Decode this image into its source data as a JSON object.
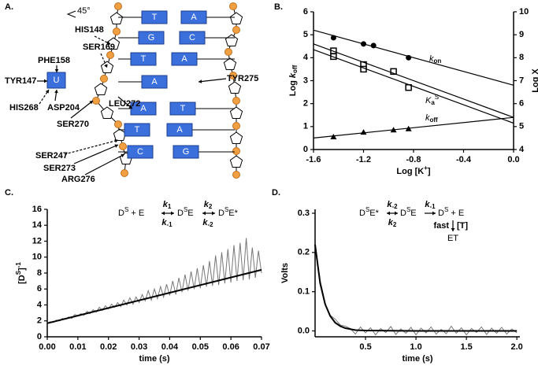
{
  "panel_labels": [
    "A.",
    "B.",
    "C.",
    "D."
  ],
  "diagram": {
    "angle": "45°",
    "nucleotide": "U",
    "residues": [
      "PHE158",
      "TYR147",
      "HIS268",
      "ASP204",
      "HIS148",
      "SER169",
      "LEU272",
      "TYR275",
      "SER270",
      "SER247",
      "SER273",
      "ARG276"
    ],
    "bases": [
      [
        "T",
        "A"
      ],
      [
        "G",
        "C"
      ],
      [
        "T",
        "A"
      ],
      [
        "A"
      ],
      [
        "A",
        "T"
      ],
      [
        "T",
        "A"
      ],
      [
        "C",
        "G"
      ]
    ]
  },
  "chart_data": [
    {
      "type": "scatter",
      "xlabel": [
        "Log [K",
        "+",
        "]"
      ],
      "ylabel": [
        "Log ",
        "k",
        "off"
      ],
      "y2label": "Log X",
      "xlim": [
        -1.6,
        0.0
      ],
      "xticks": [
        -1.6,
        -1.2,
        -0.8,
        -0.4,
        {
          "value": 0,
          "label": "0.0"
        }
      ],
      "ylim": [
        0,
        6
      ],
      "yticks": [
        0,
        1,
        2,
        3,
        4,
        5,
        6
      ],
      "y2lim": [
        4,
        10
      ],
      "y2ticks": [
        4,
        5,
        6,
        7,
        8,
        9,
        10
      ],
      "annotations": [
        [
          "k",
          "on"
        ],
        [
          "K",
          "a",
          "S"
        ],
        [
          "k",
          "off"
        ]
      ],
      "series": [
        {
          "style": "markers",
          "marker": "circle",
          "color": "#000000",
          "axis": "y2",
          "x": [
            -1.44,
            -1.2,
            -1.12,
            -0.84
          ],
          "values": [
            8.87,
            8.6,
            8.53,
            8.0
          ]
        },
        {
          "style": "markers",
          "marker": "open-square",
          "color": "#000000",
          "axis": "y2",
          "x": [
            -1.44,
            -1.44,
            -1.2,
            -1.2,
            -0.96,
            -0.84
          ],
          "values": [
            8.3,
            8.05,
            7.7,
            7.5,
            7.4,
            6.7
          ]
        },
        {
          "style": "markers",
          "marker": "triangle",
          "color": "#000000",
          "x": [
            -1.44,
            -1.2,
            -0.96,
            -0.84
          ],
          "values": [
            0.55,
            0.75,
            0.85,
            0.9
          ]
        },
        {
          "style": "line",
          "color": "#000000",
          "axis": "y2",
          "x": [
            -1.6,
            0
          ],
          "values": [
            9.2,
            6.8
          ]
        },
        {
          "style": "line",
          "color": "#000000",
          "axis": "y2",
          "x": [
            -1.6,
            0
          ],
          "values": [
            8.6,
            5.4
          ]
        },
        {
          "style": "line",
          "color": "#000000",
          "axis": "y2",
          "x": [
            -1.6,
            0
          ],
          "values": [
            8.35,
            5.15
          ]
        },
        {
          "style": "line",
          "color": "#000000",
          "x": [
            -1.6,
            0
          ],
          "values": [
            0.5,
            1.4
          ]
        }
      ]
    },
    {
      "type": "line",
      "xlabel": [
        "time (s)"
      ],
      "ylabel": [
        "[D",
        "S",
        "]",
        "-1"
      ],
      "xlim": [
        0,
        0.07
      ],
      "xticks": [
        {
          "value": 0,
          "label": "0.00"
        },
        0.01,
        0.02,
        0.03,
        0.04,
        0.05,
        0.06,
        0.07
      ],
      "ylim": [
        0,
        16
      ],
      "yticks": [
        0,
        2,
        4,
        6,
        8,
        10,
        12,
        14,
        16
      ],
      "scheme": {
        "species": [
          [
            "D",
            "S",
            " + E"
          ],
          [
            "D",
            "S",
            "E"
          ],
          [
            "D",
            "S",
            "E*"
          ]
        ],
        "rates": [
          [
            [
              "k",
              "1"
            ],
            [
              "k",
              "-1"
            ]
          ],
          [
            [
              "k",
              "2"
            ],
            [
              "k",
              "-2"
            ]
          ]
        ]
      },
      "series": [
        {
          "style": "line",
          "color": "#777777",
          "width": 1,
          "x": [
            0,
            0.001,
            0.002,
            0.003,
            0.004,
            0.005,
            0.006,
            0.007,
            0.008,
            0.009,
            0.01,
            0.011,
            0.012,
            0.013,
            0.014,
            0.015,
            0.016,
            0.017,
            0.018,
            0.019,
            0.02,
            0.021,
            0.022,
            0.023,
            0.024,
            0.025,
            0.026,
            0.027,
            0.028,
            0.029,
            0.03,
            0.031,
            0.032,
            0.033,
            0.034,
            0.035,
            0.036,
            0.037,
            0.038,
            0.039,
            0.04,
            0.041,
            0.042,
            0.043,
            0.044,
            0.045,
            0.046,
            0.047,
            0.048,
            0.049,
            0.05,
            0.051,
            0.052,
            0.053,
            0.054,
            0.055,
            0.056,
            0.057,
            0.058,
            0.059,
            0.06,
            0.061,
            0.062,
            0.063,
            0.064,
            0.065,
            0.066,
            0.067,
            0.068,
            0.069,
            0.07
          ],
          "values": [
            1.7,
            1.9,
            1.8,
            2.1,
            2.0,
            2.3,
            2.2,
            2.5,
            2.3,
            2.8,
            2.6,
            2.9,
            2.7,
            3.2,
            2.9,
            3.4,
            3.1,
            3.7,
            3.3,
            3.9,
            3.5,
            4.1,
            3.7,
            4.3,
            3.8,
            4.6,
            4.0,
            4.9,
            4.1,
            5.0,
            4.3,
            5.3,
            4.5,
            5.8,
            4.6,
            6.0,
            4.8,
            6.3,
            5.0,
            6.6,
            5.2,
            7.0,
            5.3,
            7.4,
            5.6,
            7.8,
            5.8,
            8.2,
            6.0,
            8.6,
            6.1,
            9.0,
            6.3,
            9.5,
            6.4,
            10.2,
            6.5,
            10.6,
            6.7,
            11.0,
            6.8,
            11.5,
            7.0,
            11.8,
            7.1,
            12.4,
            7.2,
            11.2,
            7.4,
            10.8,
            8.0
          ]
        },
        {
          "style": "line",
          "color": "#000000",
          "width": 2,
          "x": [
            0,
            0.07
          ],
          "values": [
            1.7,
            8.4
          ]
        }
      ]
    },
    {
      "type": "line",
      "xlabel": [
        "time (s)"
      ],
      "ylabel": [
        "Volts"
      ],
      "xlim": [
        0,
        2.03
      ],
      "xticks": [
        0.5,
        {
          "value": 1,
          "label": "1.0"
        },
        1.5,
        {
          "value": 2,
          "label": "2.0"
        }
      ],
      "ylim": [
        -0.015,
        0.31
      ],
      "yticks": [
        {
          "value": 0,
          "label": "0.0"
        },
        0.1,
        0.2,
        0.3
      ],
      "scheme": {
        "species": [
          [
            "D",
            "S",
            "E*"
          ],
          [
            "D",
            "S",
            "E"
          ],
          [
            "D",
            "S",
            " + E"
          ],
          [
            "ET"
          ]
        ],
        "rates": [
          [
            [
              "k",
              "-2"
            ],
            [
              "k",
              "2"
            ]
          ],
          [
            [
              "k",
              "-1"
            ]
          ]
        ],
        "fast": "fast",
        "trap": "[T]"
      },
      "series": [
        {
          "style": "line",
          "color": "#777777",
          "width": 1,
          "x": [
            0,
            0.05,
            0.1,
            0.15,
            0.2,
            0.25,
            0.3,
            0.35,
            0.4,
            0.45,
            0.5,
            0.55,
            0.6,
            0.65,
            0.7,
            0.75,
            0.8,
            0.85,
            0.9,
            0.95,
            1.0,
            1.05,
            1.1,
            1.15,
            1.2,
            1.25,
            1.3,
            1.35,
            1.4,
            1.45,
            1.5,
            1.55,
            1.6,
            1.65,
            1.7,
            1.75,
            1.8,
            1.85,
            1.9,
            1.95,
            2.0
          ],
          "values": [
            0.22,
            0.13,
            0.07,
            0.04,
            0.03,
            0.015,
            0.012,
            0.006,
            -0.008,
            0.01,
            -0.005,
            0.008,
            -0.01,
            0.006,
            -0.004,
            0.011,
            -0.009,
            0.005,
            -0.006,
            0.009,
            -0.01,
            0.007,
            -0.005,
            0.01,
            -0.008,
            0.004,
            -0.007,
            0.012,
            -0.006,
            0.008,
            -0.01,
            0.006,
            -0.004,
            0.01,
            -0.009,
            0.007,
            -0.006,
            0.009,
            -0.008,
            0.005,
            -0.005
          ]
        },
        {
          "style": "line",
          "color": "#000000",
          "width": 2,
          "x": [
            0,
            0.05,
            0.1,
            0.15,
            0.2,
            0.25,
            0.3,
            0.4,
            0.5,
            1.0,
            1.5,
            2.0
          ],
          "values": [
            0.22,
            0.122,
            0.068,
            0.038,
            0.021,
            0.012,
            0.007,
            0.002,
            0.001,
            0,
            0,
            0
          ]
        }
      ]
    }
  ]
}
